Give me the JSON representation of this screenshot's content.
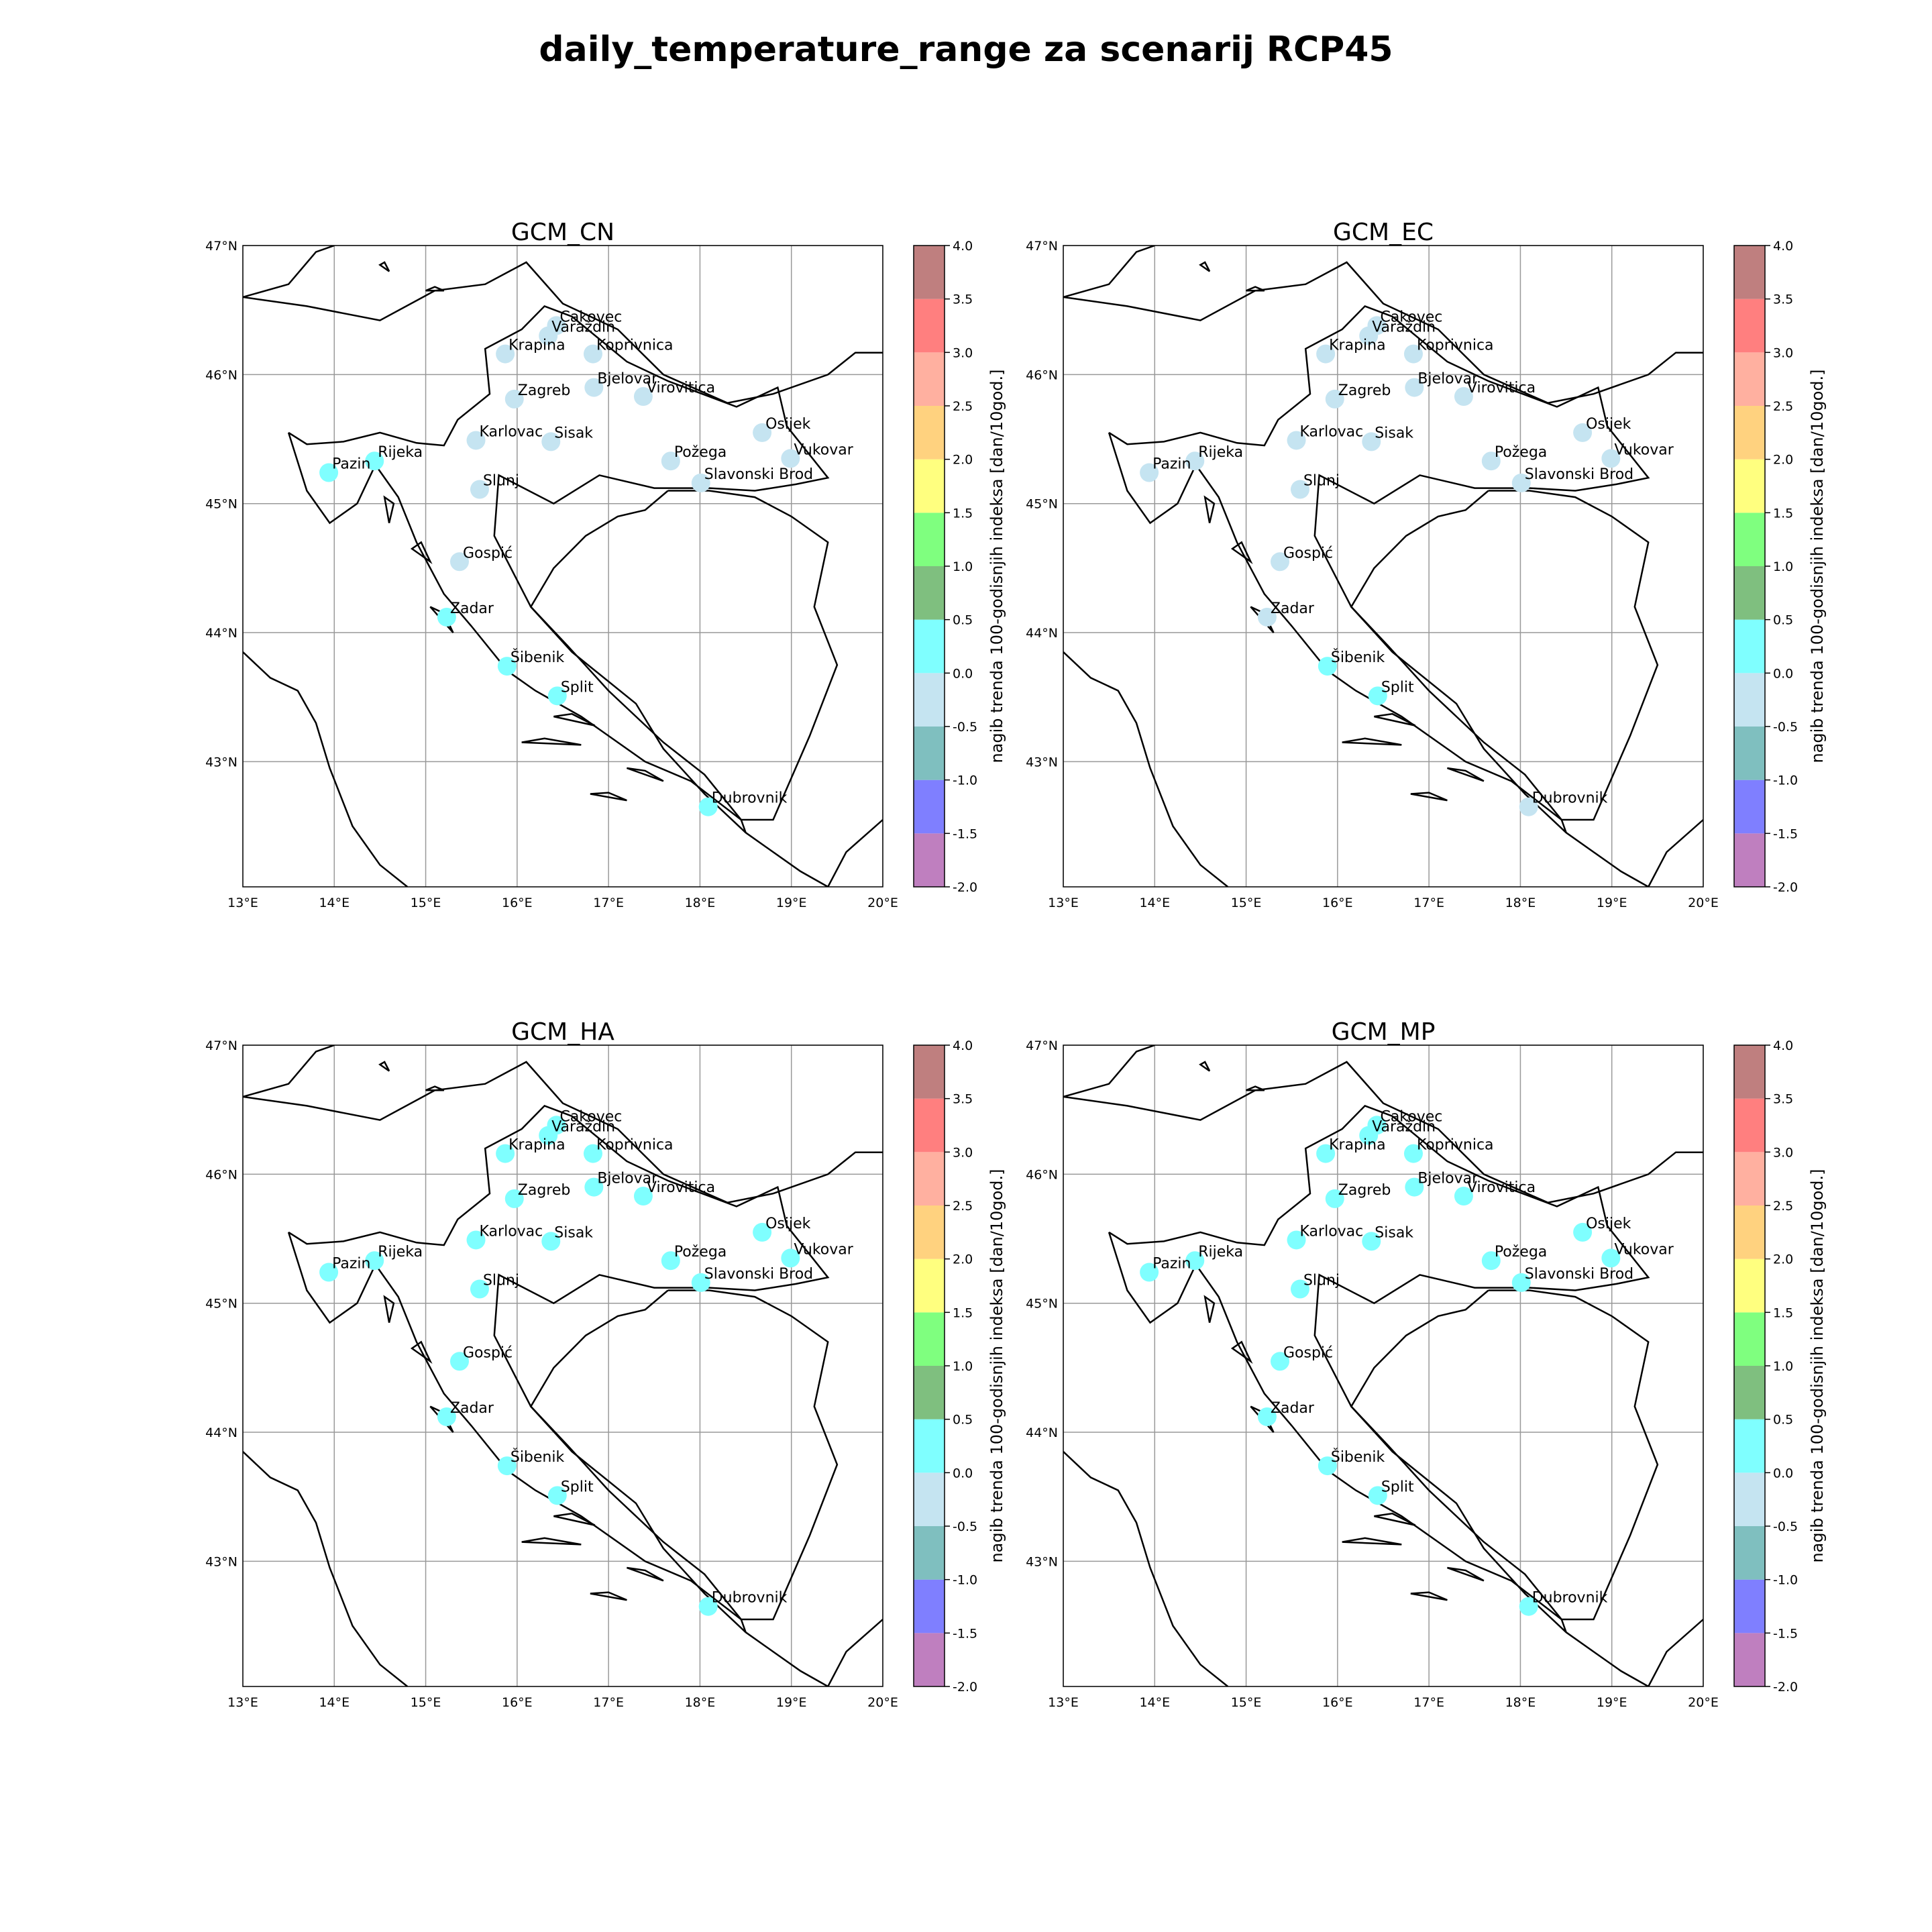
{
  "title": "daily_temperature_range za scenarij RCP45",
  "colorbar": {
    "label": "nagib trenda 100-godisnjih indeksa [dan/10god.]",
    "ticks": [
      "-2.0",
      "-1.5",
      "-1.0",
      "-0.5",
      "0.0",
      "0.5",
      "1.0",
      "1.5",
      "2.0",
      "2.5",
      "3.0",
      "3.5",
      "4.0"
    ],
    "bins": [
      {
        "from": -2.0,
        "to": -1.5,
        "color": "#bf7fbf"
      },
      {
        "from": -1.5,
        "to": -1.0,
        "color": "#7f7fff"
      },
      {
        "from": -1.0,
        "to": -0.5,
        "color": "#7fbfbf"
      },
      {
        "from": -0.5,
        "to": 0.0,
        "color": "#c5e4f1"
      },
      {
        "from": 0.0,
        "to": 0.5,
        "color": "#7fffff"
      },
      {
        "from": 0.5,
        "to": 1.0,
        "color": "#7fbf7f"
      },
      {
        "from": 1.0,
        "to": 1.5,
        "color": "#7fff7f"
      },
      {
        "from": 1.5,
        "to": 2.0,
        "color": "#ffff7f"
      },
      {
        "from": 2.0,
        "to": 2.5,
        "color": "#ffd27f"
      },
      {
        "from": 2.5,
        "to": 3.0,
        "color": "#ffb0a0"
      },
      {
        "from": 3.0,
        "to": 3.5,
        "color": "#ff7f7f"
      },
      {
        "from": 3.5,
        "to": 4.0,
        "color": "#bf7f7f"
      }
    ]
  },
  "axes": {
    "lon_ticks": [
      {
        "v": 13,
        "label": "13°E"
      },
      {
        "v": 14,
        "label": "14°E"
      },
      {
        "v": 15,
        "label": "15°E"
      },
      {
        "v": 16,
        "label": "16°E"
      },
      {
        "v": 17,
        "label": "17°E"
      },
      {
        "v": 18,
        "label": "18°E"
      },
      {
        "v": 19,
        "label": "19°E"
      },
      {
        "v": 20,
        "label": "20°E"
      }
    ],
    "lat_ticks": [
      {
        "v": 47,
        "label": "47°N"
      },
      {
        "v": 46,
        "label": "46°N"
      },
      {
        "v": 45,
        "label": "45°N"
      },
      {
        "v": 44,
        "label": "44°N"
      },
      {
        "v": 43,
        "label": "43°N"
      }
    ],
    "lon_range": [
      13,
      20
    ],
    "lat_range": [
      42.03,
      47
    ]
  },
  "stations": [
    {
      "name": "Cakovec",
      "lon": 16.43,
      "lat": 46.38
    },
    {
      "name": "Varaždin",
      "lon": 16.34,
      "lat": 46.3
    },
    {
      "name": "Krapina",
      "lon": 15.87,
      "lat": 46.16
    },
    {
      "name": "Koprivnica",
      "lon": 16.83,
      "lat": 46.16
    },
    {
      "name": "Bjelovar",
      "lon": 16.84,
      "lat": 45.9
    },
    {
      "name": "Virovitica",
      "lon": 17.38,
      "lat": 45.83
    },
    {
      "name": "Zagreb",
      "lon": 15.97,
      "lat": 45.81
    },
    {
      "name": "Osijek",
      "lon": 18.68,
      "lat": 45.55
    },
    {
      "name": "Karlovac",
      "lon": 15.55,
      "lat": 45.49
    },
    {
      "name": "Sisak",
      "lon": 16.37,
      "lat": 45.48
    },
    {
      "name": "Vukovar",
      "lon": 18.99,
      "lat": 45.35
    },
    {
      "name": "Požega",
      "lon": 17.68,
      "lat": 45.33
    },
    {
      "name": "Pazin",
      "lon": 13.94,
      "lat": 45.24
    },
    {
      "name": "Rijeka",
      "lon": 14.44,
      "lat": 45.33
    },
    {
      "name": "Slavonski Brod",
      "lon": 18.01,
      "lat": 45.16
    },
    {
      "name": "Slunj",
      "lon": 15.59,
      "lat": 45.11
    },
    {
      "name": "Gospić",
      "lon": 15.37,
      "lat": 44.55
    },
    {
      "name": "Zadar",
      "lon": 15.23,
      "lat": 44.12
    },
    {
      "name": "Šibenik",
      "lon": 15.89,
      "lat": 43.74
    },
    {
      "name": "Split",
      "lon": 16.44,
      "lat": 43.51
    },
    {
      "name": "Dubrovnik",
      "lon": 18.09,
      "lat": 42.65
    }
  ],
  "panels": [
    {
      "title": "GCM_CN",
      "values": {
        "Cakovec": -0.3,
        "Varaždin": -0.3,
        "Krapina": -0.3,
        "Koprivnica": -0.3,
        "Bjelovar": -0.3,
        "Virovitica": -0.3,
        "Zagreb": -0.3,
        "Osijek": -0.3,
        "Karlovac": -0.3,
        "Sisak": -0.3,
        "Vukovar": -0.3,
        "Požega": -0.3,
        "Pazin": 0.2,
        "Rijeka": 0.2,
        "Slavonski Brod": -0.3,
        "Slunj": -0.3,
        "Gospić": -0.3,
        "Zadar": 0.2,
        "Šibenik": 0.2,
        "Split": 0.2,
        "Dubrovnik": 0.2
      }
    },
    {
      "title": "GCM_EC",
      "values": {
        "Cakovec": -0.3,
        "Varaždin": -0.3,
        "Krapina": -0.3,
        "Koprivnica": -0.3,
        "Bjelovar": -0.3,
        "Virovitica": -0.3,
        "Zagreb": -0.3,
        "Osijek": -0.3,
        "Karlovac": -0.3,
        "Sisak": -0.3,
        "Vukovar": -0.3,
        "Požega": -0.3,
        "Pazin": -0.3,
        "Rijeka": -0.3,
        "Slavonski Brod": -0.3,
        "Slunj": -0.3,
        "Gospić": -0.3,
        "Zadar": -0.3,
        "Šibenik": 0.2,
        "Split": 0.2,
        "Dubrovnik": -0.3
      }
    },
    {
      "title": "GCM_HA",
      "values": {
        "Cakovec": 0.2,
        "Varaždin": 0.2,
        "Krapina": 0.2,
        "Koprivnica": 0.2,
        "Bjelovar": 0.2,
        "Virovitica": 0.2,
        "Zagreb": 0.2,
        "Osijek": 0.2,
        "Karlovac": 0.2,
        "Sisak": 0.2,
        "Vukovar": 0.2,
        "Požega": 0.2,
        "Pazin": 0.2,
        "Rijeka": 0.2,
        "Slavonski Brod": 0.2,
        "Slunj": 0.2,
        "Gospić": 0.2,
        "Zadar": 0.2,
        "Šibenik": 0.2,
        "Split": 0.2,
        "Dubrovnik": 0.2
      }
    },
    {
      "title": "GCM_MP",
      "values": {
        "Cakovec": 0.2,
        "Varaždin": 0.2,
        "Krapina": 0.2,
        "Koprivnica": 0.2,
        "Bjelovar": 0.2,
        "Virovitica": 0.2,
        "Zagreb": 0.2,
        "Osijek": 0.2,
        "Karlovac": 0.2,
        "Sisak": 0.2,
        "Vukovar": 0.2,
        "Požega": 0.2,
        "Pazin": 0.2,
        "Rijeka": 0.2,
        "Slavonski Brod": 0.2,
        "Slunj": 0.2,
        "Gospić": 0.2,
        "Zadar": 0.2,
        "Šibenik": 0.2,
        "Split": 0.2,
        "Dubrovnik": 0.2
      }
    }
  ]
}
